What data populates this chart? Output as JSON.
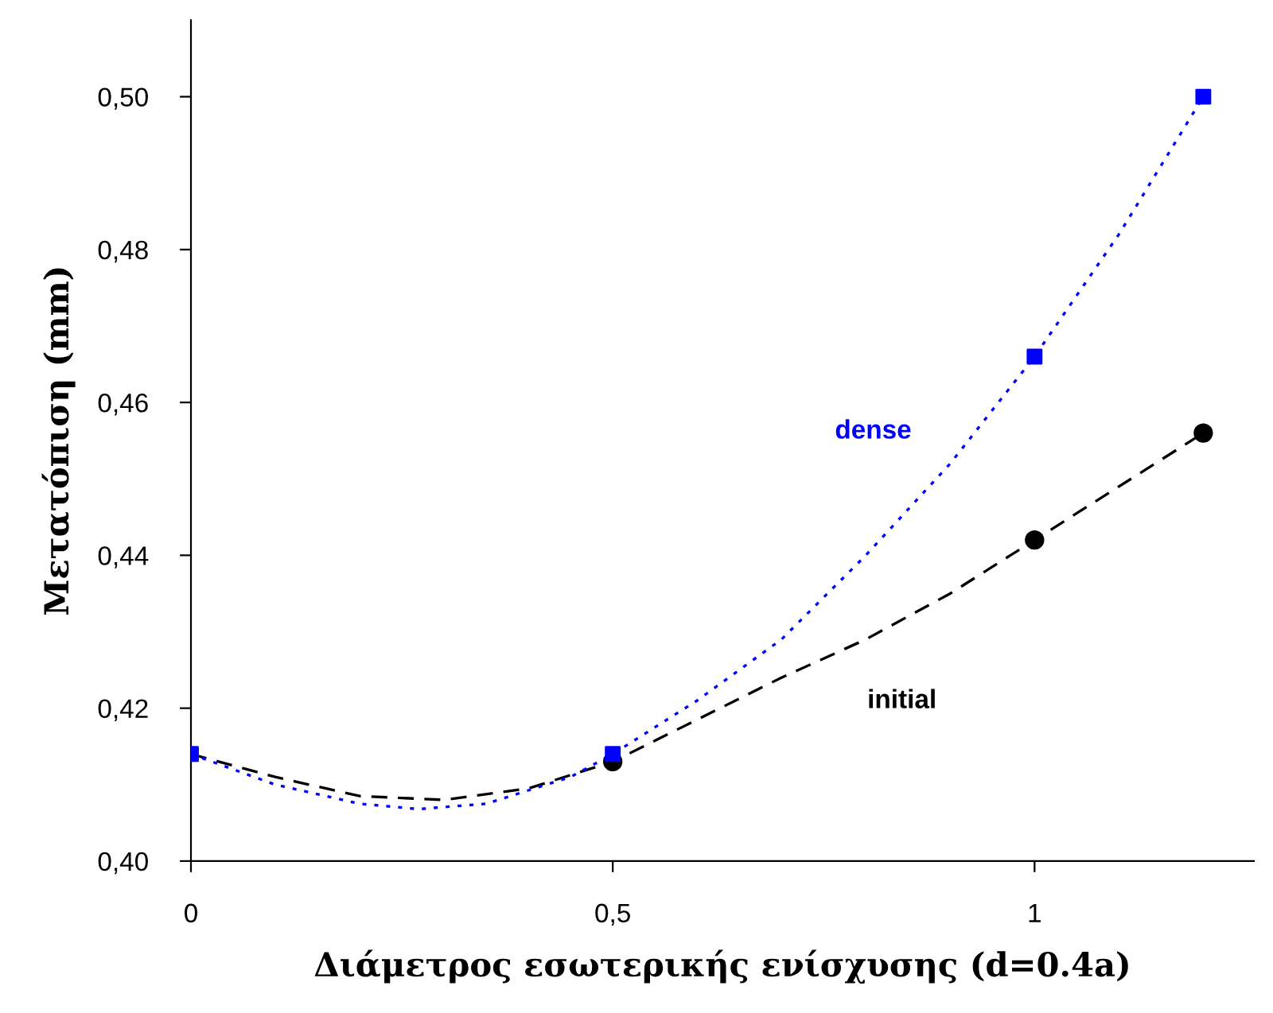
{
  "chart_data": {
    "type": "line",
    "xlabel": "Διάμετρος εσωτερικής ενίσχυσης (d=0.4a)",
    "ylabel": "Μετατόπιση (mm)",
    "series": [
      {
        "color": "#000000",
        "line_style": "dashed",
        "x": [
          0,
          0.1,
          0.2,
          0.3,
          0.4,
          0.5,
          0.6,
          0.7,
          0.8,
          0.9,
          1,
          1.1,
          1.2
        ],
        "values": [
          0.414,
          0.411,
          0.4085,
          0.408,
          0.4095,
          0.413,
          0.4185,
          0.424,
          0.429,
          0.435,
          0.442,
          0.449,
          0.456
        ]
      },
      {
        "color": "#0000ff",
        "line_style": "dotted",
        "x": [
          0,
          0.1,
          0.2,
          0.27,
          0.35,
          0.45,
          0.5,
          0.6,
          0.7,
          0.8,
          0.9,
          1,
          1.1,
          1.2
        ],
        "values": [
          0.414,
          0.41,
          0.4075,
          0.4068,
          0.4075,
          0.411,
          0.414,
          0.421,
          0.429,
          0.44,
          0.452,
          0.466,
          0.482,
          0.5
        ]
      },
      {
        "type": "scatter",
        "name": "initial",
        "color": "#000000",
        "marker": "circle",
        "x": [
          0.5,
          1,
          1.2
        ],
        "values": [
          0.413,
          0.442,
          0.456
        ]
      },
      {
        "type": "scatter",
        "name": "dense",
        "color": "#0000ff",
        "marker": "square",
        "x": [
          0,
          0.5,
          1,
          1.2
        ],
        "values": [
          0.414,
          0.414,
          0.466,
          0.5
        ]
      }
    ],
    "xlim": [
      0,
      1.26
    ],
    "xticks": [
      0,
      {
        "value": 0.5,
        "label": "0,5"
      },
      1
    ],
    "ylim": [
      0.4,
      0.51
    ],
    "yticks": [
      {
        "value": 0.4,
        "label": "0,40"
      },
      {
        "value": 0.42,
        "label": "0,42"
      },
      {
        "value": 0.44,
        "label": "0,44"
      },
      {
        "value": 0.46,
        "label": "0,46"
      },
      {
        "value": 0.48,
        "label": "0,48"
      },
      {
        "value": 0.5,
        "label": "0,50"
      }
    ],
    "grid": false,
    "legend": false
  }
}
